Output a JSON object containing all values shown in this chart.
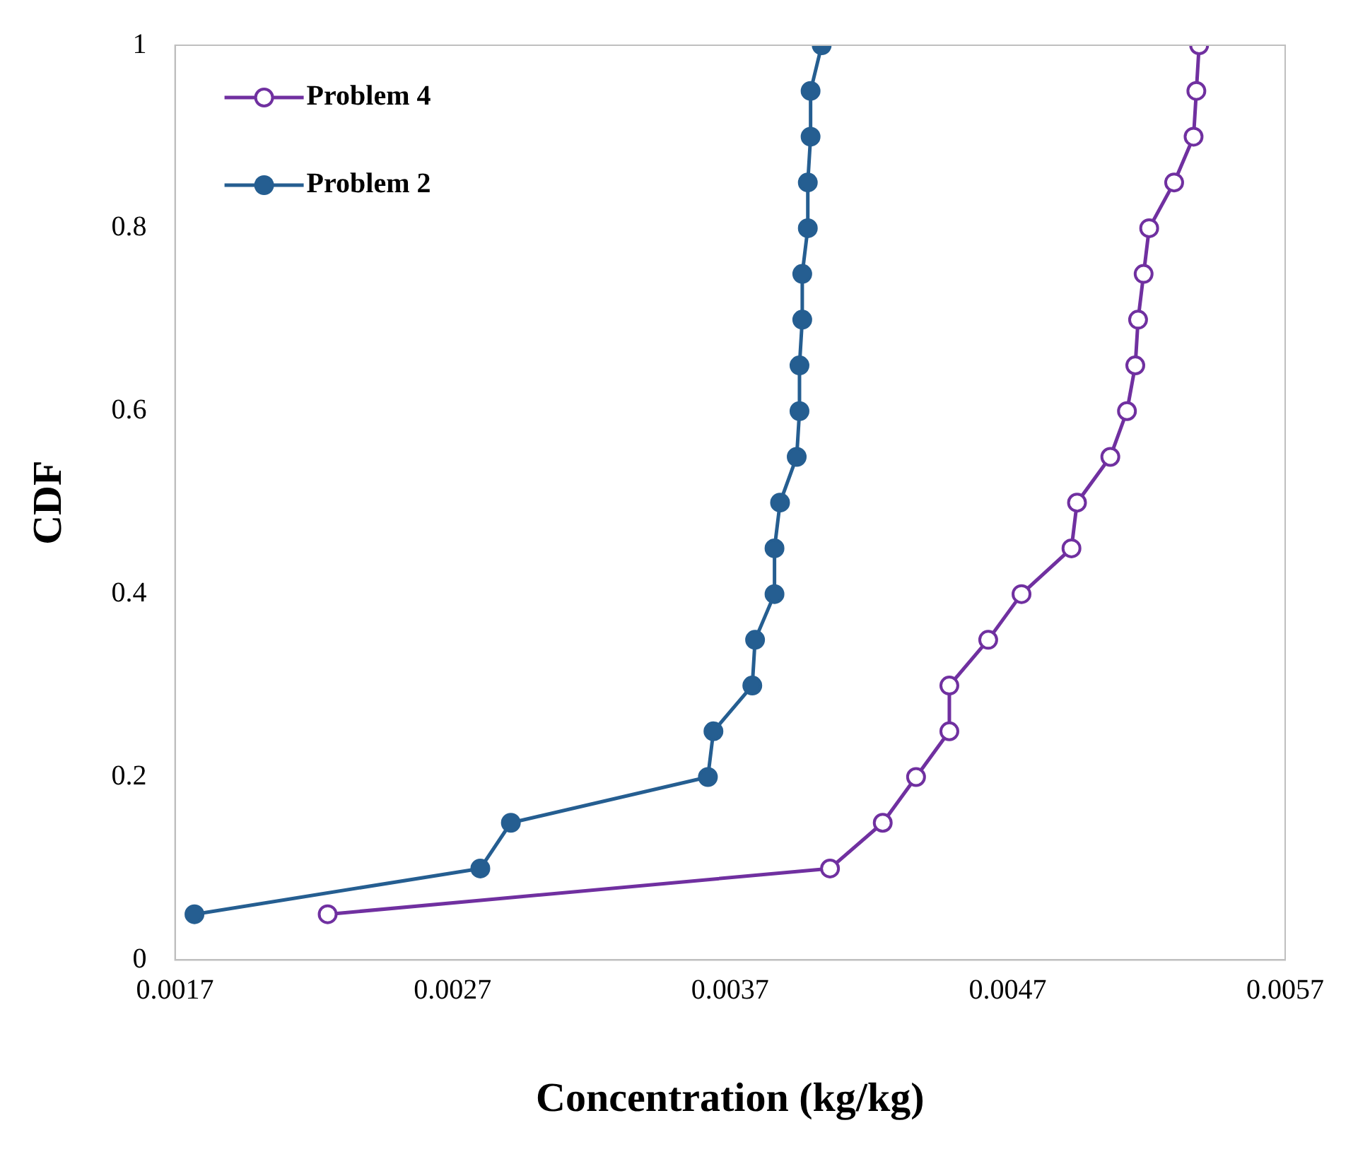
{
  "chart_data": {
    "type": "line",
    "xlabel": "Concentration (kg/kg)",
    "ylabel": "CDF",
    "xlim": [
      0.0017,
      0.0057
    ],
    "xticks": [
      0.0017,
      0.0027,
      0.0037,
      0.0047,
      0.0057
    ],
    "ylim": [
      0,
      1
    ],
    "yticks": [
      0,
      0.2,
      0.4,
      0.6,
      0.8,
      1
    ],
    "grid": false,
    "legend": "top left",
    "marker": "circle",
    "line_style": "solid",
    "series": [
      {
        "name": "Problem 4",
        "color": "#7030a0",
        "x": [
          0.00225,
          0.00406,
          0.00425,
          0.00437,
          0.00449,
          0.00449,
          0.00463,
          0.00475,
          0.00493,
          0.00495,
          0.00507,
          0.00513,
          0.00516,
          0.00517,
          0.00519,
          0.00521,
          0.0053,
          0.00537,
          0.00538,
          0.00539
        ],
        "values": [
          0.05,
          0.1,
          0.15,
          0.2,
          0.25,
          0.3,
          0.35,
          0.4,
          0.45,
          0.5,
          0.55,
          0.6,
          0.65,
          0.7,
          0.75,
          0.8,
          0.85,
          0.9,
          0.95,
          1
        ]
      },
      {
        "name": "Problem 2",
        "color": "#255e91",
        "x": [
          0.00177,
          0.0028,
          0.00291,
          0.00362,
          0.00364,
          0.00378,
          0.00379,
          0.00386,
          0.00386,
          0.00388,
          0.00394,
          0.00395,
          0.00395,
          0.00396,
          0.00396,
          0.00398,
          0.00398,
          0.00399,
          0.00399,
          0.00403
        ],
        "values": [
          0.05,
          0.1,
          0.15,
          0.2,
          0.25,
          0.3,
          0.35,
          0.4,
          0.45,
          0.5,
          0.55,
          0.6,
          0.65,
          0.7,
          0.75,
          0.8,
          0.85,
          0.9,
          0.95,
          1
        ]
      }
    ]
  }
}
